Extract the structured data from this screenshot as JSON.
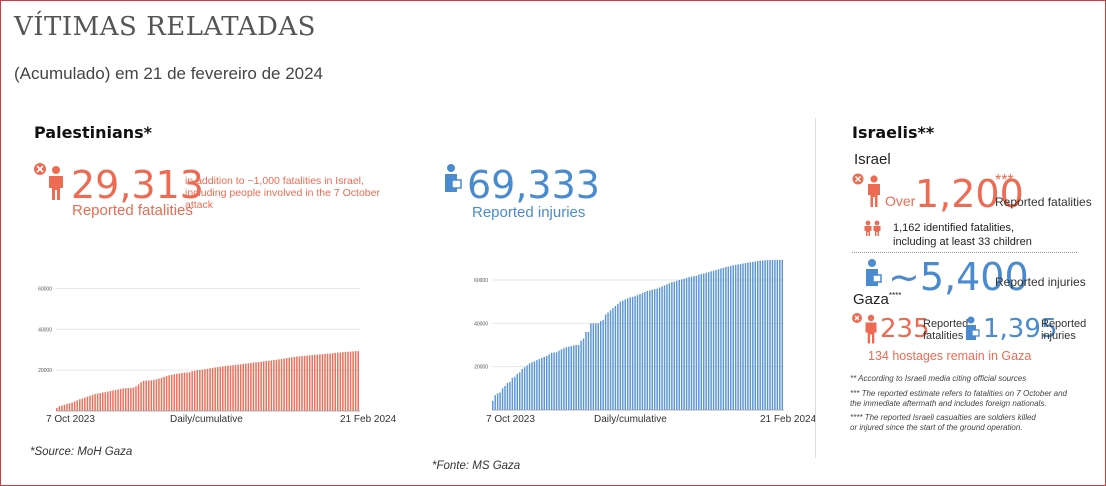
{
  "header": {
    "title": "VÍTIMAS RELATADAS",
    "subtitle": "(Acumulado) em 21 de fevereiro de 2024"
  },
  "palestinians": {
    "heading": "Palestinians*",
    "fatalities_value": "29,313",
    "fatalities_note": "in addition to ~1,000 fatalities in Israel, including people involved in the 7 October attack",
    "fatalities_label": "Reported fatalities",
    "injuries_value": "69,333",
    "injuries_label": "Reported injuries",
    "source": "*Source: MoH Gaza"
  },
  "israelis": {
    "heading": "Israelis**",
    "israel_label": "Israel",
    "over": "Over",
    "fatalities_value": "1,200",
    "fatalities_sup": "***",
    "fatalities_label": "Reported fatalities",
    "identified_line1": "1,162 identified fatalities,",
    "identified_line2": "including at least 33 children",
    "injuries_value": "~5,400",
    "injuries_label": "Reported injuries",
    "gaza_label": "Gaza",
    "gaza_sup": "****",
    "gaza_fatalities_value": "235",
    "gaza_fatalities_label_1": "Reported",
    "gaza_fatalities_label_2": "fatalities",
    "gaza_injuries_value": "1,395",
    "gaza_injuries_label_1": "Reported",
    "gaza_injuries_label_2": "injuries",
    "hostages": "134 hostages remain in Gaza",
    "footnote_1": "** According to Israeli media citing official sources",
    "footnote_2": "*** The reported estimate refers to fatalities on 7 October and the immediate aftermath and includes foreign nationals.",
    "footnote_3": "**** The reported Israeli casualties are soldiers killed or injured since the start of the ground operation."
  },
  "footer": {
    "source": "*Fonte: MS Gaza"
  },
  "colors": {
    "red": "#ec6b52",
    "blue": "#4a8bd0",
    "bar_red": "#e8725e",
    "bar_blue": "#5b95d6"
  },
  "icons": [
    "x-circle-icon",
    "person-icon",
    "injured-person-icon",
    "people-pair-icon"
  ],
  "chart_data": [
    {
      "type": "bar",
      "x_start": "7 Oct 2023",
      "x_end": "21 Feb 2024",
      "xlabel": "Daily/cumulative",
      "yticks": [
        20000,
        40000,
        60000
      ],
      "ylim": [
        0,
        70000
      ],
      "values": [
        1417,
        2329,
        2670,
        3054,
        3431,
        3785,
        4137,
        4655,
        5226,
        5743,
        6055,
        6546,
        7028,
        7428,
        7862,
        8306,
        8525,
        8805,
        9061,
        9227,
        9488,
        9770,
        10022,
        10328,
        10569,
        10818,
        11078,
        11180,
        11240,
        11300,
        11500,
        12000,
        13000,
        14100,
        14800,
        14854,
        14900,
        15000,
        15207,
        15523,
        15899,
        16248,
        16700,
        17177,
        17487,
        17700,
        17997,
        18205,
        18412,
        18608,
        18787,
        18800,
        19000,
        19453,
        19667,
        20000,
        20057,
        20258,
        20424,
        20674,
        20915,
        21110,
        21320,
        21507,
        21672,
        21822,
        22000,
        22185,
        22313,
        22438,
        22600,
        22722,
        22835,
        23084,
        23210,
        23357,
        23469,
        23708,
        23843,
        23968,
        24100,
        24285,
        24448,
        24620,
        24762,
        24927,
        25105,
        25295,
        25490,
        25700,
        25900,
        26083,
        26257,
        26422,
        26637,
        26751,
        26900,
        27019,
        27131,
        27238,
        27365,
        27478,
        27585,
        27708,
        27840,
        27947,
        28064,
        28176,
        28340,
        28473,
        28576,
        28663,
        28775,
        28858,
        28985,
        29092,
        29195,
        29313,
        29313
      ],
      "source": "*Source: MoH Gaza"
    },
    {
      "type": "bar",
      "x_start": "7 Oct 2023",
      "x_end": "21 Feb 2024",
      "xlabel": "Daily/cumulative",
      "yticks": [
        20000,
        40000,
        60000
      ],
      "ylim": [
        0,
        72000
      ],
      "values": [
        4250,
        6850,
        7696,
        8100,
        10000,
        11100,
        12500,
        13000,
        14800,
        15300,
        16700,
        17400,
        18900,
        19700,
        20600,
        21500,
        22000,
        22500,
        23000,
        23500,
        24000,
        24500,
        25000,
        25600,
        26400,
        26500,
        26700,
        27400,
        28000,
        28500,
        29000,
        29200,
        29500,
        29800,
        30000,
        30000,
        32000,
        33000,
        36000,
        36000,
        40000,
        40000,
        40000,
        40000,
        41000,
        41500,
        44000,
        45000,
        46000,
        47000,
        48000,
        49000,
        50000,
        50500,
        51000,
        51500,
        52000,
        52200,
        52500,
        53000,
        53500,
        54000,
        54500,
        55000,
        55200,
        55500,
        55800,
        56000,
        56500,
        57000,
        57500,
        58000,
        58500,
        59000,
        59200,
        59600,
        60000,
        60300,
        60600,
        61000,
        61300,
        61500,
        61800,
        62000,
        62500,
        62800,
        63000,
        63300,
        63600,
        64000,
        64300,
        64600,
        65000,
        65300,
        65600,
        66000,
        66200,
        66500,
        66800,
        67000,
        67200,
        67400,
        67600,
        67800,
        68000,
        68200,
        68400,
        68600,
        68800,
        68900,
        69000,
        69100,
        69150,
        69200,
        69250,
        69280,
        69300,
        69320,
        69333
      ],
      "source": "*Fonte: MS Gaza"
    }
  ]
}
